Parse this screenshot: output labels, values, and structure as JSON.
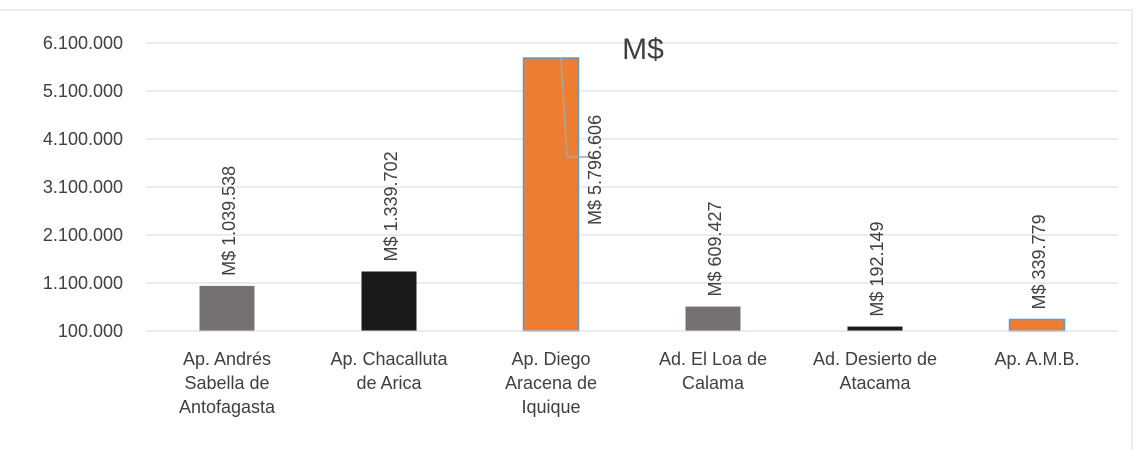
{
  "chart_data": {
    "type": "bar",
    "title": "M$",
    "categories": [
      "Ap. Andrés Sabella de Antofagasta",
      "Ap. Chacalluta de Arica",
      "Ap. Diego Aracena de Iquique",
      "Ad. El Loa de Calama",
      "Ad. Desierto de Atacama",
      "Ap. A.M.B."
    ],
    "category_lines": [
      [
        "Ap. Andrés",
        "Sabella de",
        "Antofagasta"
      ],
      [
        "Ap. Chacalluta",
        "de Arica"
      ],
      [
        "Ap. Diego",
        "Aracena de",
        "Iquique"
      ],
      [
        "Ad. El Loa de",
        "Calama"
      ],
      [
        "Ad. Desierto de",
        "Atacama"
      ],
      [
        "Ap. A.M.B."
      ]
    ],
    "values": [
      1039538,
      1339702,
      5796606,
      609427,
      192149,
      339779
    ],
    "data_labels": [
      "M$ 1.039.538",
      "M$ 1.339.702",
      "M$ 5.796.606",
      "M$ 609.427",
      "M$ 192.149",
      "M$ 339.779"
    ],
    "bar_colors": [
      "#767171",
      "#1a1a1a",
      "#ed7d31",
      "#767171",
      "#1a1a1a",
      "#ed7d31"
    ],
    "y_ticks": [
      100000,
      1100000,
      2100000,
      3100000,
      4100000,
      5100000,
      6100000
    ],
    "y_tick_labels": [
      "100.000",
      "1.100.000",
      "2.100.000",
      "3.100.000",
      "4.100.000",
      "5.100.000",
      "6.100.000"
    ],
    "ylim": [
      100000,
      6100000
    ],
    "grid": true,
    "legend": "none",
    "xlabel": "",
    "ylabel": ""
  }
}
